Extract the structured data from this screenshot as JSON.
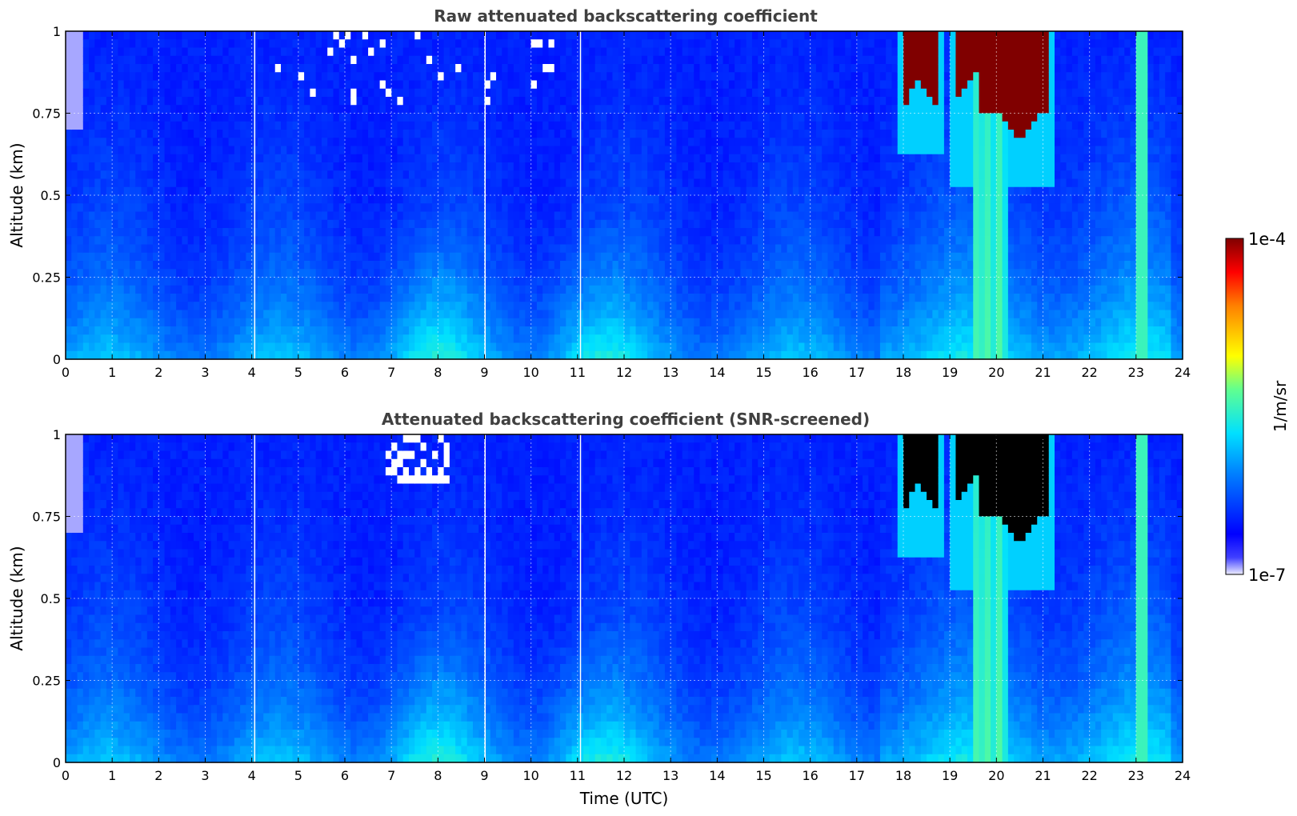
{
  "chart_data": [
    {
      "type": "heatmap",
      "title": "Raw attenuated backscattering coefficient",
      "xlabel": "",
      "ylabel": "Altitude (km)",
      "xlim": [
        0,
        24
      ],
      "ylim": [
        0,
        1
      ],
      "x_ticks": [
        "0",
        "1",
        "2",
        "3",
        "4",
        "5",
        "6",
        "7",
        "8",
        "9",
        "10",
        "11",
        "12",
        "13",
        "14",
        "15",
        "16",
        "17",
        "18",
        "19",
        "20",
        "21",
        "22",
        "23",
        "24"
      ],
      "y_ticks": [
        "0",
        "0.25",
        "0.5",
        "0.75",
        "1"
      ],
      "grid": true,
      "features": [
        {
          "name": "cloud",
          "t_start": 18.0,
          "t_end": 18.8,
          "base_km": 0.81,
          "level": 1.0
        },
        {
          "name": "cloud",
          "t_start": 19.1,
          "t_end": 21.1,
          "base_km": 0.66,
          "level": 1.0
        },
        {
          "name": "precipitation",
          "t_start": 19.6,
          "t_end": 20.2,
          "base_km": 0.0,
          "level": 0.55
        },
        {
          "name": "spike",
          "t_start": 23.1,
          "t_end": 23.25,
          "base_km": 0.0,
          "level": 0.55
        }
      ]
    },
    {
      "type": "heatmap",
      "title": "Attenuated backscattering coefficient (SNR-screened)",
      "xlabel": "Time (UTC)",
      "ylabel": "Altitude (km)",
      "xlim": [
        0,
        24
      ],
      "ylim": [
        0,
        1
      ],
      "x_ticks": [
        "0",
        "1",
        "2",
        "3",
        "4",
        "5",
        "6",
        "7",
        "8",
        "9",
        "10",
        "11",
        "12",
        "13",
        "14",
        "15",
        "16",
        "17",
        "18",
        "19",
        "20",
        "21",
        "22",
        "23",
        "24"
      ],
      "y_ticks": [
        "0",
        "0.25",
        "0.5",
        "0.75",
        "1"
      ],
      "grid": true,
      "saturated_color": "#000000",
      "features": [
        {
          "name": "cloud",
          "t_start": 18.0,
          "t_end": 18.8,
          "base_km": 0.81,
          "level": 1.0
        },
        {
          "name": "cloud",
          "t_start": 19.1,
          "t_end": 21.1,
          "base_km": 0.66,
          "level": 1.0
        },
        {
          "name": "precipitation",
          "t_start": 19.6,
          "t_end": 20.2,
          "base_km": 0.0,
          "level": 0.55
        },
        {
          "name": "screened-gap",
          "t_start": 6.9,
          "t_end": 8.2,
          "base_km": 0.84,
          "level": 0.0
        }
      ]
    }
  ],
  "colorbar": {
    "label": "1/m/sr",
    "min_label": "1e-7",
    "max_label": "1e-4",
    "colormap": "jet",
    "colors": [
      "#ffffff",
      "#0000ff",
      "#0080ff",
      "#00e0ff",
      "#80ff80",
      "#ffff00",
      "#ff8000",
      "#ff0000",
      "#800000"
    ]
  }
}
